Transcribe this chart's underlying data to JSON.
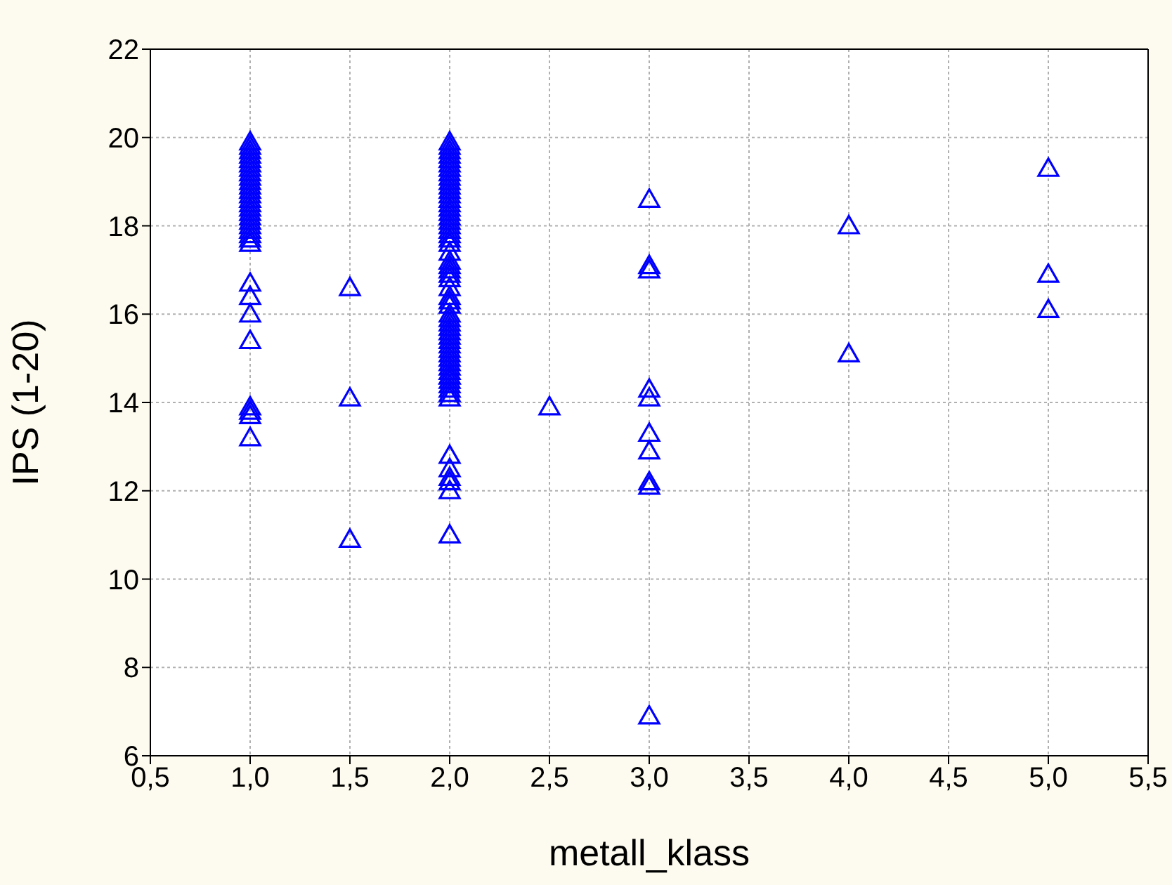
{
  "chart_data": {
    "type": "scatter",
    "xlabel": "metall_klass",
    "ylabel": "IPS (1-20)",
    "marker": "triangle",
    "grid": true,
    "xlim": [
      0.5,
      5.5
    ],
    "xticks": [
      {
        "value": 0.5,
        "label": "0,5"
      },
      {
        "value": 1,
        "label": "1,0"
      },
      {
        "value": 1.5,
        "label": "1,5"
      },
      {
        "value": 2,
        "label": "2,0"
      },
      {
        "value": 2.5,
        "label": "2,5"
      },
      {
        "value": 3,
        "label": "3,0"
      },
      {
        "value": 3.5,
        "label": "3,5"
      },
      {
        "value": 4,
        "label": "4,0"
      },
      {
        "value": 4.5,
        "label": "4,5"
      },
      {
        "value": 5,
        "label": "5,0"
      },
      {
        "value": 5.5,
        "label": "5,5"
      }
    ],
    "ylim": [
      6,
      22
    ],
    "yticks": [
      6,
      8,
      10,
      12,
      14,
      16,
      18,
      20,
      22
    ],
    "series": [
      {
        "color": "#0000ff",
        "x": [
          1,
          1,
          1,
          1,
          1,
          1,
          1,
          1,
          1,
          1,
          1,
          1,
          1,
          1,
          1,
          1,
          1,
          1,
          1,
          1,
          1,
          1,
          1,
          1,
          1,
          1,
          1,
          1,
          1,
          1,
          1,
          1,
          1.5,
          1.5,
          1.5,
          2,
          2,
          2,
          2,
          2,
          2,
          2,
          2,
          2,
          2,
          2,
          2,
          2,
          2,
          2,
          2,
          2,
          2,
          2,
          2,
          2,
          2,
          2,
          2,
          2,
          2,
          2,
          2,
          2,
          2,
          2,
          2,
          2,
          2,
          2,
          2,
          2,
          2,
          2,
          2,
          2,
          2,
          2,
          2,
          2,
          2,
          2,
          2,
          2,
          2,
          2,
          2,
          2,
          2,
          2,
          2,
          2,
          2,
          2,
          2,
          2,
          2.5,
          3,
          3,
          3,
          3,
          3,
          3,
          3,
          3,
          3,
          3,
          4,
          4,
          5,
          5,
          5
        ],
        "values": [
          19.8,
          19.7,
          19.6,
          19.5,
          19.4,
          19.3,
          19.2,
          19.1,
          19.0,
          18.9,
          18.8,
          18.7,
          18.6,
          18.5,
          18.4,
          18.3,
          18.2,
          18.1,
          18.0,
          17.9,
          17.8,
          17.7,
          17.6,
          16.7,
          16.4,
          16.0,
          15.4,
          13.9,
          13.8,
          13.7,
          13.2,
          19.9,
          16.6,
          14.1,
          10.9,
          19.8,
          19.7,
          19.6,
          19.5,
          19.4,
          19.3,
          19.2,
          19.1,
          19.0,
          18.9,
          18.8,
          18.7,
          18.6,
          18.5,
          18.4,
          18.3,
          18.2,
          18.0,
          17.9,
          17.8,
          17.6,
          17.4,
          17.2,
          17.1,
          17.0,
          16.9,
          16.6,
          16.4,
          16.2,
          16.0,
          15.9,
          15.8,
          15.6,
          15.5,
          15.4,
          15.2,
          15.1,
          15.0,
          14.9,
          14.7,
          14.6,
          14.5,
          14.4,
          14.3,
          14.2,
          14.1,
          12.8,
          12.5,
          12.3,
          12.2,
          12.0,
          11.0,
          19.9,
          18.1,
          17.7,
          16.8,
          16.3,
          15.7,
          15.3,
          14.8,
          14.6,
          13.9,
          18.6,
          17.1,
          17.0,
          14.3,
          14.1,
          13.3,
          12.9,
          12.2,
          12.1,
          6.9,
          18.0,
          15.1,
          19.3,
          16.9,
          16.1
        ]
      }
    ]
  }
}
